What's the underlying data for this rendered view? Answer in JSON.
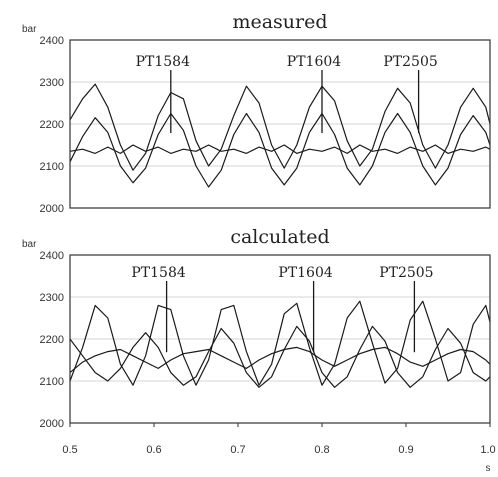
{
  "chart_data": [
    {
      "type": "line",
      "title": "measured",
      "ylabel": "bar",
      "xlabel": "",
      "ylim": [
        2000,
        2400
      ],
      "xlim": [
        0.5,
        1.0
      ],
      "y_ticks": [
        "2000",
        "2100",
        "2200",
        "2300",
        "2400"
      ],
      "x_ticks": [],
      "grid": true,
      "series": [
        {
          "name": "PT1584",
          "x": [
            0.5,
            0.515,
            0.53,
            0.545,
            0.56,
            0.575,
            0.59,
            0.605,
            0.62,
            0.635,
            0.65,
            0.665,
            0.68,
            0.695,
            0.71,
            0.725,
            0.74,
            0.755,
            0.77,
            0.785,
            0.8,
            0.815,
            0.83,
            0.845,
            0.86,
            0.875,
            0.89,
            0.905,
            0.92,
            0.935,
            0.95,
            0.965,
            0.98,
            0.995,
            1.0
          ],
          "y": [
            2110,
            2170,
            2215,
            2180,
            2100,
            2060,
            2095,
            2175,
            2225,
            2185,
            2100,
            2050,
            2090,
            2175,
            2225,
            2180,
            2095,
            2055,
            2095,
            2180,
            2225,
            2175,
            2095,
            2055,
            2100,
            2180,
            2225,
            2180,
            2100,
            2055,
            2095,
            2175,
            2220,
            2180,
            2150
          ]
        },
        {
          "name": "PT1604",
          "x": [
            0.5,
            0.515,
            0.53,
            0.545,
            0.56,
            0.575,
            0.59,
            0.605,
            0.62,
            0.635,
            0.65,
            0.665,
            0.68,
            0.695,
            0.71,
            0.725,
            0.74,
            0.755,
            0.77,
            0.785,
            0.8,
            0.815,
            0.83,
            0.845,
            0.86,
            0.875,
            0.89,
            0.905,
            0.92,
            0.935,
            0.95,
            0.965,
            0.98,
            0.995,
            1.0
          ],
          "y": [
            2135,
            2140,
            2130,
            2145,
            2130,
            2150,
            2135,
            2145,
            2130,
            2140,
            2135,
            2150,
            2135,
            2140,
            2130,
            2145,
            2135,
            2150,
            2130,
            2140,
            2135,
            2145,
            2130,
            2150,
            2135,
            2140,
            2130,
            2145,
            2135,
            2150,
            2130,
            2140,
            2135,
            2145,
            2140
          ]
        },
        {
          "name": "PT2505",
          "x": [
            0.5,
            0.515,
            0.53,
            0.545,
            0.56,
            0.575,
            0.59,
            0.605,
            0.62,
            0.635,
            0.65,
            0.665,
            0.68,
            0.695,
            0.71,
            0.725,
            0.74,
            0.755,
            0.77,
            0.785,
            0.8,
            0.815,
            0.83,
            0.845,
            0.86,
            0.875,
            0.89,
            0.905,
            0.92,
            0.935,
            0.95,
            0.965,
            0.98,
            0.995,
            1.0
          ],
          "y": [
            2210,
            2260,
            2295,
            2240,
            2150,
            2090,
            2130,
            2220,
            2275,
            2260,
            2160,
            2100,
            2140,
            2220,
            2290,
            2250,
            2150,
            2095,
            2150,
            2240,
            2290,
            2255,
            2160,
            2100,
            2140,
            2230,
            2285,
            2250,
            2150,
            2095,
            2150,
            2240,
            2285,
            2240,
            2200
          ]
        }
      ],
      "annotations": [
        {
          "text": "PT1584",
          "x": 0.62,
          "y": 2250
        },
        {
          "text": "PT1604",
          "x": 0.8,
          "y": 2250
        },
        {
          "text": "PT2505",
          "x": 0.915,
          "y": 2250
        }
      ]
    },
    {
      "type": "line",
      "title": "calculated",
      "ylabel": "bar",
      "xlabel": "s",
      "ylim": [
        2000,
        2400
      ],
      "xlim": [
        0.5,
        1.0
      ],
      "y_ticks": [
        "2000",
        "2100",
        "2200",
        "2300",
        "2400"
      ],
      "x_ticks": [
        "0.5",
        "0.6",
        "0.7",
        "0.8",
        "0.9",
        "1.0"
      ],
      "grid": true,
      "series": [
        {
          "name": "PT1584",
          "x": [
            0.5,
            0.515,
            0.53,
            0.545,
            0.56,
            0.575,
            0.59,
            0.605,
            0.62,
            0.635,
            0.65,
            0.665,
            0.68,
            0.695,
            0.71,
            0.725,
            0.74,
            0.755,
            0.77,
            0.785,
            0.8,
            0.815,
            0.83,
            0.845,
            0.86,
            0.875,
            0.89,
            0.905,
            0.92,
            0.935,
            0.95,
            0.965,
            0.98,
            0.995,
            1.0
          ],
          "y": [
            2200,
            2160,
            2120,
            2100,
            2130,
            2180,
            2215,
            2180,
            2120,
            2090,
            2110,
            2170,
            2225,
            2190,
            2120,
            2085,
            2110,
            2175,
            2230,
            2195,
            2120,
            2085,
            2110,
            2175,
            2230,
            2195,
            2120,
            2085,
            2110,
            2175,
            2225,
            2190,
            2120,
            2100,
            2110
          ]
        },
        {
          "name": "PT1604",
          "x": [
            0.5,
            0.515,
            0.53,
            0.545,
            0.56,
            0.575,
            0.59,
            0.605,
            0.62,
            0.635,
            0.65,
            0.665,
            0.68,
            0.695,
            0.71,
            0.725,
            0.74,
            0.755,
            0.77,
            0.785,
            0.8,
            0.815,
            0.83,
            0.845,
            0.86,
            0.875,
            0.89,
            0.905,
            0.92,
            0.935,
            0.95,
            0.965,
            0.98,
            0.995,
            1.0
          ],
          "y": [
            2120,
            2145,
            2160,
            2170,
            2175,
            2160,
            2145,
            2130,
            2150,
            2165,
            2170,
            2175,
            2160,
            2145,
            2130,
            2150,
            2165,
            2175,
            2180,
            2170,
            2150,
            2135,
            2150,
            2165,
            2175,
            2180,
            2165,
            2145,
            2135,
            2150,
            2165,
            2175,
            2170,
            2150,
            2140
          ]
        },
        {
          "name": "PT2505",
          "x": [
            0.5,
            0.515,
            0.53,
            0.545,
            0.56,
            0.575,
            0.59,
            0.605,
            0.62,
            0.635,
            0.65,
            0.665,
            0.68,
            0.695,
            0.71,
            0.725,
            0.74,
            0.755,
            0.77,
            0.785,
            0.8,
            0.815,
            0.83,
            0.845,
            0.86,
            0.875,
            0.89,
            0.905,
            0.92,
            0.935,
            0.95,
            0.965,
            0.98,
            0.995,
            1.0
          ],
          "y": [
            2100,
            2180,
            2280,
            2250,
            2140,
            2090,
            2160,
            2280,
            2270,
            2160,
            2090,
            2150,
            2270,
            2280,
            2170,
            2090,
            2140,
            2260,
            2285,
            2180,
            2090,
            2140,
            2250,
            2290,
            2190,
            2095,
            2130,
            2245,
            2290,
            2200,
            2100,
            2120,
            2235,
            2280,
            2240
          ]
        }
      ],
      "annotations": [
        {
          "text": "PT1584",
          "x": 0.615,
          "y": 2240
        },
        {
          "text": "PT1604",
          "x": 0.79,
          "y": 2240
        },
        {
          "text": "PT2505",
          "x": 0.91,
          "y": 2240
        }
      ]
    }
  ]
}
